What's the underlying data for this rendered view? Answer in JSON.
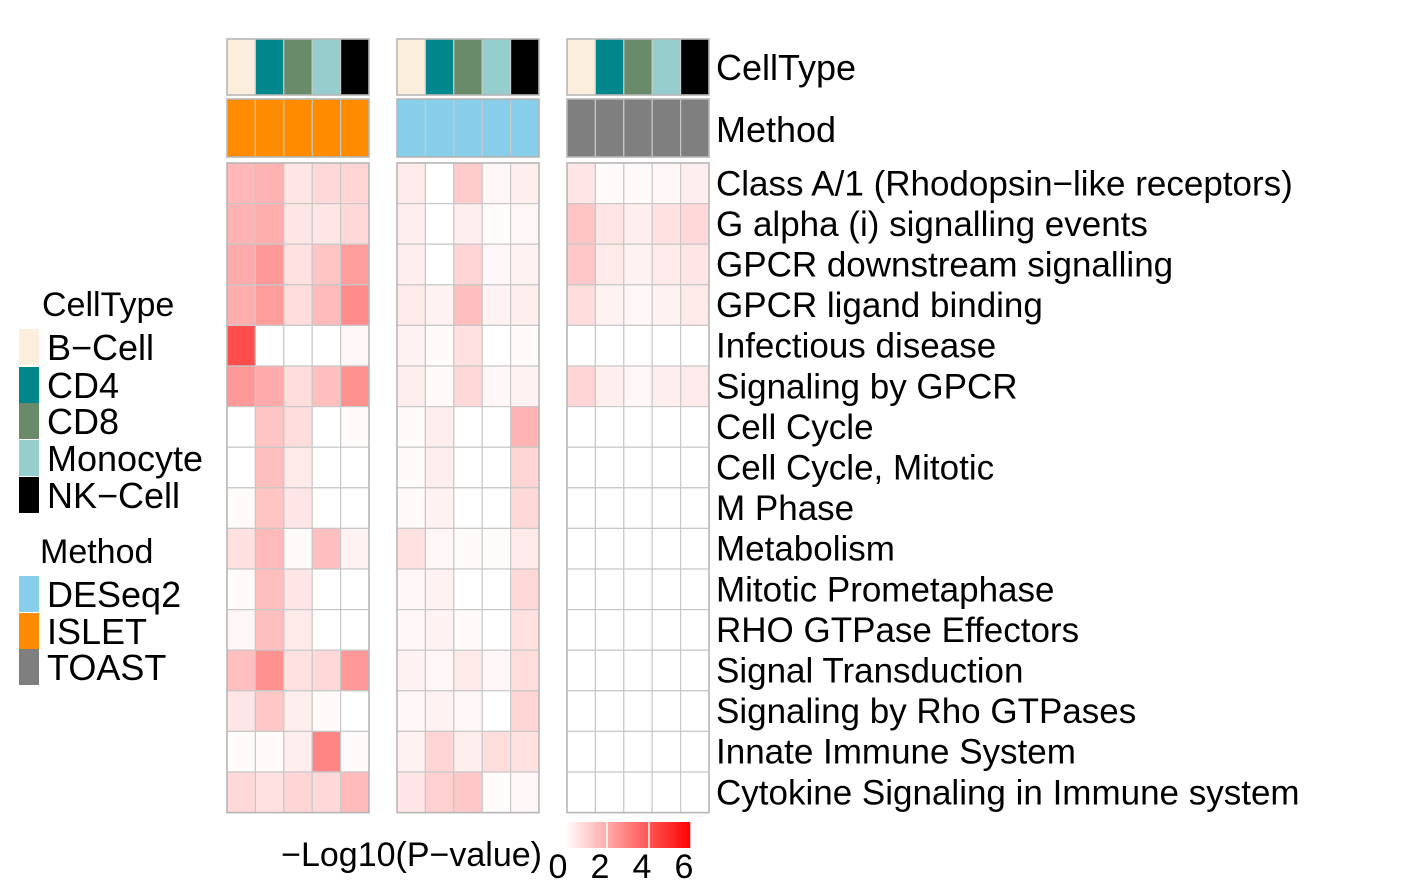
{
  "chart_data": {
    "type": "heatmap",
    "colorbar_title": "−Log10(P−value)",
    "colorbar_ticks": [
      "0",
      "2",
      "4",
      "6"
    ],
    "color_range": [
      0,
      6
    ],
    "color_low": "#ffffff",
    "color_high": "#ff0000",
    "annotation_tracks": [
      "CellType",
      "Method"
    ],
    "celltype_colors": {
      "B−Cell": "#fbeedd",
      "CD4": "#00868b",
      "CD8": "#698b69",
      "Monocyte": "#96cdcd",
      "NK−Cell": "#000000"
    },
    "method_colors": {
      "DESeq2": "#87ceeb",
      "ISLET": "#ff8c00",
      "TOAST": "#7f7f7f"
    },
    "legend": {
      "celltype_title": "CellType",
      "celltype_items": [
        "B−Cell",
        "CD4",
        "CD8",
        "Monocyte",
        "NK−Cell"
      ],
      "method_title": "Method",
      "method_items": [
        "DESeq2",
        "ISLET",
        "TOAST"
      ]
    },
    "column_groups": [
      {
        "method": "ISLET",
        "celltypes": [
          "B−Cell",
          "CD4",
          "CD8",
          "Monocyte",
          "NK−Cell"
        ]
      },
      {
        "method": "DESeq2",
        "celltypes": [
          "B−Cell",
          "CD4",
          "CD8",
          "Monocyte",
          "NK−Cell"
        ]
      },
      {
        "method": "TOAST",
        "celltypes": [
          "B−Cell",
          "CD4",
          "CD8",
          "Monocyte",
          "NK−Cell"
        ]
      }
    ],
    "rows": [
      "Class A/1 (Rhodopsin−like receptors)",
      "G alpha (i) signalling events",
      "GPCR downstream signalling",
      "GPCR ligand binding",
      "Infectious disease",
      "Signaling by GPCR",
      "Cell Cycle",
      "Cell Cycle, Mitotic",
      "M Phase",
      "Metabolism",
      "Mitotic Prometaphase",
      "RHO GTPase Effectors",
      "Signal Transduction",
      "Signaling by Rho GTPases",
      "Innate Immune System",
      "Cytokine Signaling in Immune system"
    ],
    "values": [
      [
        1.7,
        1.8,
        0.6,
        0.9,
        1.0,
        0.5,
        0.0,
        1.2,
        0.2,
        0.4,
        0.6,
        0.1,
        0.1,
        0.2,
        0.4
      ],
      [
        1.8,
        1.9,
        0.6,
        0.6,
        0.9,
        0.4,
        0.0,
        0.4,
        0.1,
        0.2,
        1.4,
        0.6,
        0.4,
        0.7,
        0.9
      ],
      [
        2.0,
        2.4,
        0.7,
        1.4,
        2.3,
        0.4,
        0.0,
        1.0,
        0.2,
        0.3,
        1.3,
        0.5,
        0.3,
        0.5,
        0.6
      ],
      [
        1.9,
        2.3,
        0.8,
        1.6,
        2.7,
        0.5,
        0.3,
        1.5,
        0.3,
        0.4,
        0.8,
        0.3,
        0.2,
        0.3,
        0.5
      ],
      [
        4.2,
        0.0,
        0.0,
        0.0,
        0.2,
        0.3,
        0.1,
        0.7,
        0.0,
        0.1,
        0.0,
        0.0,
        0.0,
        0.0,
        0.0
      ],
      [
        2.4,
        2.0,
        0.8,
        1.5,
        2.6,
        0.4,
        0.1,
        0.9,
        0.2,
        0.3,
        1.0,
        0.4,
        0.2,
        0.4,
        0.5
      ],
      [
        0.0,
        1.4,
        0.8,
        0.0,
        0.1,
        0.1,
        0.4,
        0.0,
        0.0,
        1.8,
        0.0,
        0.0,
        0.0,
        0.0,
        0.0
      ],
      [
        0.0,
        1.5,
        0.5,
        0.0,
        0.0,
        0.1,
        0.4,
        0.0,
        0.0,
        1.0,
        0.0,
        0.0,
        0.0,
        0.0,
        0.0
      ],
      [
        0.1,
        1.4,
        0.6,
        0.0,
        0.0,
        0.1,
        0.3,
        0.0,
        0.0,
        0.9,
        0.0,
        0.0,
        0.0,
        0.0,
        0.0
      ],
      [
        0.7,
        1.6,
        0.1,
        1.5,
        0.3,
        0.7,
        0.2,
        0.1,
        0.1,
        0.5,
        0.0,
        0.0,
        0.0,
        0.0,
        0.0
      ],
      [
        0.1,
        1.5,
        0.6,
        0.0,
        0.0,
        0.2,
        0.3,
        0.0,
        0.0,
        0.9,
        0.0,
        0.0,
        0.0,
        0.0,
        0.0
      ],
      [
        0.2,
        1.5,
        0.5,
        0.0,
        0.0,
        0.2,
        0.3,
        0.1,
        0.0,
        0.7,
        0.0,
        0.0,
        0.0,
        0.0,
        0.0
      ],
      [
        1.5,
        2.6,
        0.7,
        0.9,
        2.4,
        0.3,
        0.2,
        0.5,
        0.2,
        0.8,
        0.0,
        0.0,
        0.0,
        0.0,
        0.0
      ],
      [
        0.6,
        1.3,
        0.4,
        0.1,
        0.0,
        0.2,
        0.3,
        0.2,
        0.0,
        1.0,
        0.0,
        0.0,
        0.0,
        0.0,
        0.0
      ],
      [
        0.1,
        0.1,
        0.4,
        2.9,
        0.1,
        0.3,
        1.0,
        0.4,
        0.8,
        0.7,
        0.0,
        0.0,
        0.0,
        0.0,
        0.0
      ],
      [
        0.9,
        0.7,
        1.0,
        0.9,
        1.6,
        0.6,
        1.1,
        1.3,
        0.1,
        0.2,
        0.0,
        0.0,
        0.0,
        0.0,
        0.0
      ]
    ]
  }
}
